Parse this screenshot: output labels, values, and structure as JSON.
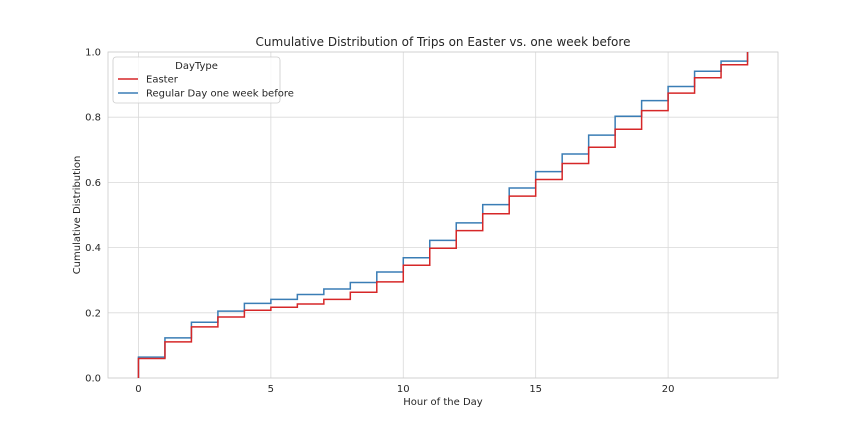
{
  "chart_data": {
    "type": "line",
    "step": "post",
    "title": "Cumulative Distribution of Trips on Easter vs. one week before",
    "xlabel": "Hour of the Day",
    "ylabel": "Cumulative Distribution",
    "xlim": [
      -1.15,
      24.15
    ],
    "ylim": [
      0,
      1.0
    ],
    "xticks": [
      0,
      5,
      10,
      15,
      20
    ],
    "xtick_labels": [
      "0",
      "5",
      "10",
      "15",
      "20"
    ],
    "yticks": [
      0.0,
      0.2,
      0.4,
      0.6,
      0.8,
      1.0
    ],
    "ytick_labels": [
      "0.0",
      "0.2",
      "0.4",
      "0.6",
      "0.8",
      "1.0"
    ],
    "grid": true,
    "legend": {
      "title": "DayType",
      "placement": "top-left"
    },
    "x": [
      0,
      1,
      2,
      3,
      4,
      5,
      6,
      7,
      8,
      9,
      10,
      11,
      12,
      13,
      14,
      15,
      16,
      17,
      18,
      19,
      20,
      21,
      22,
      23
    ],
    "series": [
      {
        "name": "Regular Day one week before",
        "color": "#3a7db5",
        "values": [
          0.064,
          0.123,
          0.171,
          0.205,
          0.229,
          0.241,
          0.256,
          0.273,
          0.293,
          0.325,
          0.369,
          0.422,
          0.476,
          0.532,
          0.583,
          0.633,
          0.687,
          0.745,
          0.803,
          0.851,
          0.894,
          0.941,
          0.972,
          1.0
        ]
      },
      {
        "name": "Easter",
        "color": "#d62728",
        "values": [
          0.06,
          0.111,
          0.157,
          0.187,
          0.208,
          0.217,
          0.227,
          0.241,
          0.263,
          0.295,
          0.346,
          0.398,
          0.452,
          0.504,
          0.558,
          0.609,
          0.658,
          0.708,
          0.763,
          0.82,
          0.874,
          0.921,
          0.961,
          1.0
        ]
      }
    ]
  }
}
